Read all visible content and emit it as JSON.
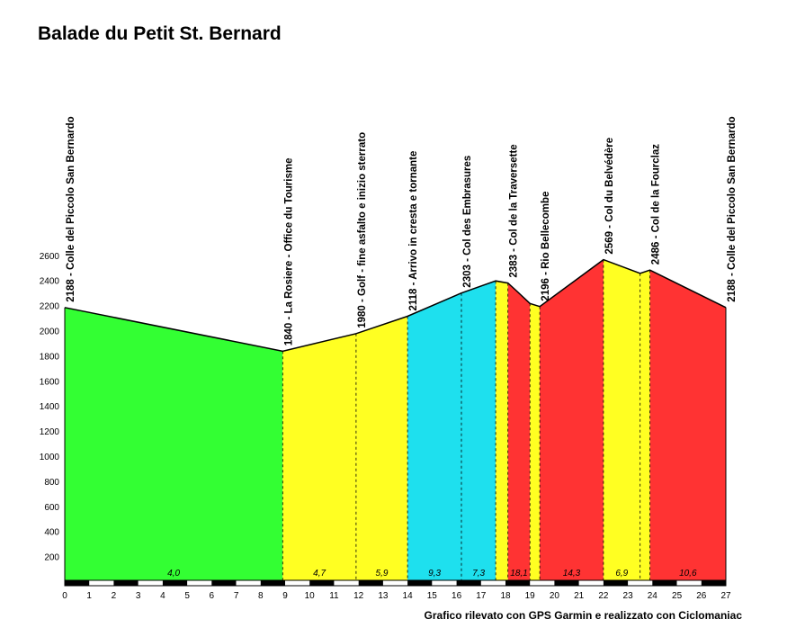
{
  "chart_data": {
    "type": "area",
    "title": "Balade du Petit St. Bernard",
    "credit": "Grafico rilevato con GPS Garmin e realizzato con Ciclomaniac",
    "xlabel": "",
    "ylabel": "",
    "xlim": [
      0,
      27
    ],
    "ylim": [
      0,
      2700
    ],
    "x_ticks": [
      "0",
      "1",
      "2",
      "3",
      "4",
      "5",
      "6",
      "7",
      "8",
      "9",
      "10",
      "11",
      "12",
      "13",
      "14",
      "15",
      "16",
      "17",
      "18",
      "19",
      "20",
      "21",
      "22",
      "23",
      "24",
      "25",
      "26",
      "27"
    ],
    "y_ticks": [
      "200",
      "400",
      "600",
      "800",
      "1000",
      "1200",
      "1400",
      "1600",
      "1800",
      "2000",
      "2200",
      "2400",
      "2600"
    ],
    "profile": [
      {
        "x": 0,
        "y": 2188
      },
      {
        "x": 8.9,
        "y": 1840
      },
      {
        "x": 11.9,
        "y": 1980
      },
      {
        "x": 14.0,
        "y": 2118
      },
      {
        "x": 16.2,
        "y": 2303
      },
      {
        "x": 17.6,
        "y": 2400
      },
      {
        "x": 18.1,
        "y": 2383
      },
      {
        "x": 18.4,
        "y": 2330
      },
      {
        "x": 19.0,
        "y": 2220
      },
      {
        "x": 19.4,
        "y": 2196
      },
      {
        "x": 22.0,
        "y": 2569
      },
      {
        "x": 23.5,
        "y": 2460
      },
      {
        "x": 23.9,
        "y": 2486
      },
      {
        "x": 27.0,
        "y": 2188
      }
    ],
    "segments": [
      {
        "x0": 0,
        "x1": 8.9,
        "color": "#33ff33",
        "gradient": "4,0"
      },
      {
        "x0": 8.9,
        "x1": 11.9,
        "color": "#ffff22",
        "gradient": "4,7"
      },
      {
        "x0": 11.9,
        "x1": 14.0,
        "color": "#ffff22",
        "gradient": "5,9"
      },
      {
        "x0": 14.0,
        "x1": 16.2,
        "color": "#1ee0ee",
        "gradient": "9,3"
      },
      {
        "x0": 16.2,
        "x1": 17.6,
        "color": "#1ee0ee",
        "gradient": "7,3"
      },
      {
        "x0": 17.6,
        "x1": 18.1,
        "color": "#ffff22",
        "gradient": ""
      },
      {
        "x0": 18.1,
        "x1": 19.0,
        "color": "#ff3333",
        "gradient": "18,1"
      },
      {
        "x0": 19.0,
        "x1": 19.4,
        "color": "#ffff22",
        "gradient": ""
      },
      {
        "x0": 19.4,
        "x1": 22.0,
        "color": "#ff3333",
        "gradient": "14,3"
      },
      {
        "x0": 22.0,
        "x1": 23.5,
        "color": "#ffff22",
        "gradient": "6,9"
      },
      {
        "x0": 23.5,
        "x1": 23.9,
        "color": "#ffff22",
        "gradient": ""
      },
      {
        "x0": 23.9,
        "x1": 27.0,
        "color": "#ff3333",
        "gradient": "10,6"
      }
    ],
    "waypoints": [
      {
        "x": 0,
        "y": 2188,
        "label": "2188 - Colle del Piccolo San Bernardo"
      },
      {
        "x": 8.9,
        "y": 1840,
        "label": "1840 - La Rosiere - Office du Tourisme"
      },
      {
        "x": 11.9,
        "y": 1980,
        "label": "1980 - Golf - fine asfalto e inizio sterrato"
      },
      {
        "x": 14.0,
        "y": 2118,
        "label": "2118 - Arrivo in cresta e tornante"
      },
      {
        "x": 16.2,
        "y": 2303,
        "label": "2303 - Col des Embrasures"
      },
      {
        "x": 18.1,
        "y": 2383,
        "label": "2383 - Col de la Traversette"
      },
      {
        "x": 19.4,
        "y": 2196,
        "label": "2196 - Rio Bellecombe"
      },
      {
        "x": 22.0,
        "y": 2569,
        "label": "2569 - Col du Belvédère"
      },
      {
        "x": 23.9,
        "y": 2486,
        "label": "2486 - Col de la Fourclaz"
      },
      {
        "x": 27.0,
        "y": 2188,
        "label": "2188 - Colle del Piccolo San  Bernardo"
      }
    ],
    "colors": {
      "green": "#33ff33",
      "yellow": "#ffff22",
      "cyan": "#1ee0ee",
      "red": "#ff3333"
    },
    "grid": false,
    "legend": "none"
  }
}
